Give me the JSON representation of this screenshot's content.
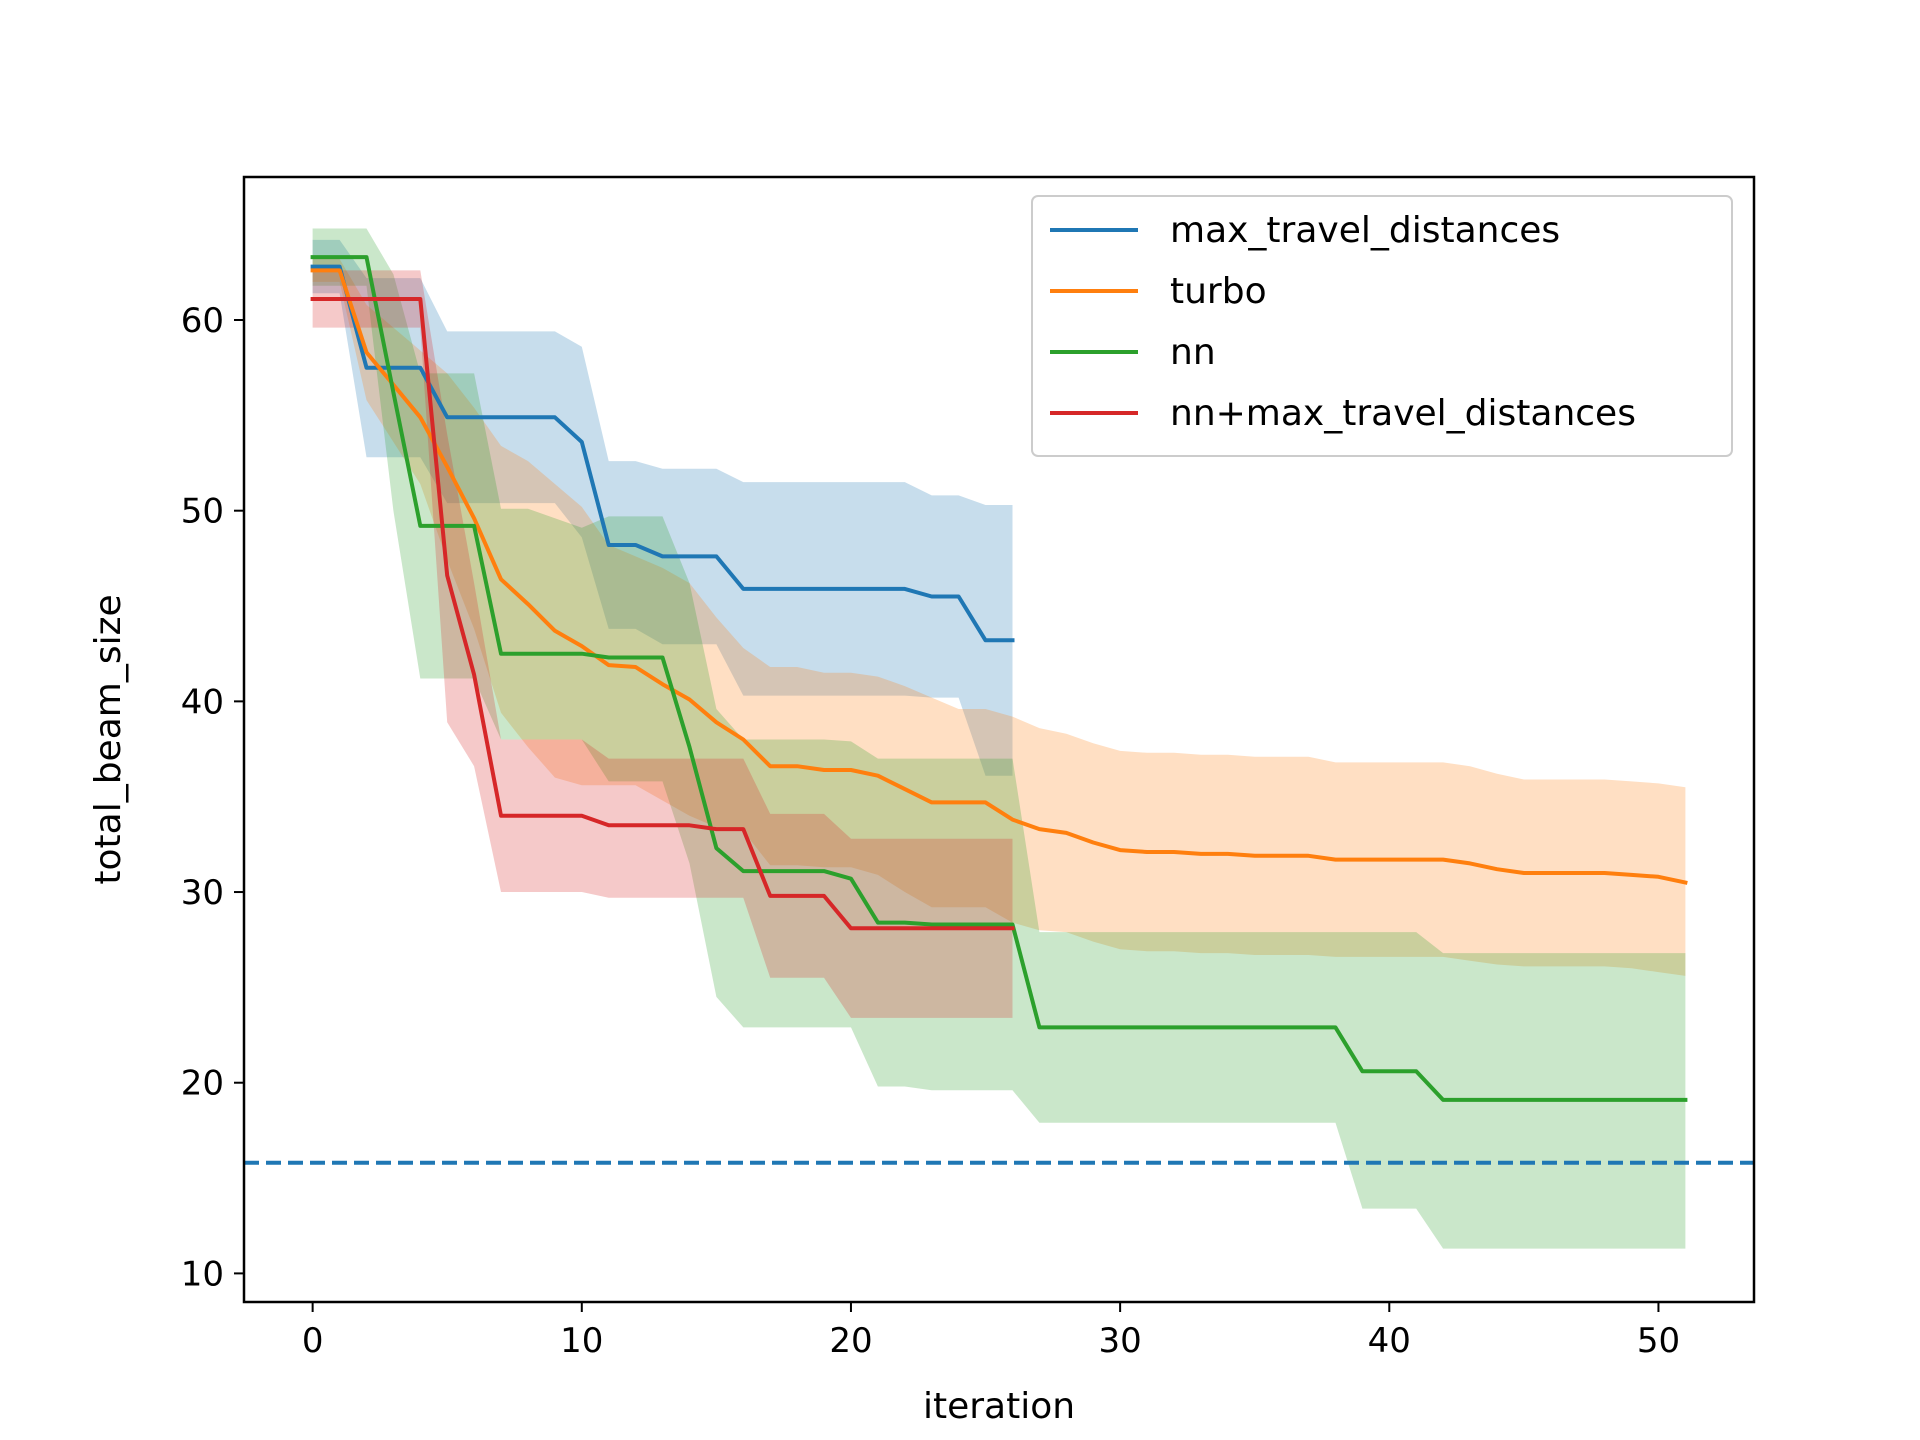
{
  "chart_data": {
    "type": "line",
    "title": "",
    "xlabel": "iteration",
    "ylabel": "total_beam_size",
    "xlim": [
      -2.55,
      53.55
    ],
    "ylim": [
      8.5,
      67.5
    ],
    "xticks": [
      0,
      10,
      20,
      30,
      40,
      50
    ],
    "yticks": [
      10,
      20,
      30,
      40,
      50,
      60
    ],
    "grid": false,
    "legend_position": "upper-right",
    "reference_line": {
      "y": 15.8,
      "style": "dashed",
      "color": "#1f77b4"
    },
    "series": [
      {
        "name": "max_travel_distances",
        "color": "#1f77b4",
        "x": [
          0,
          1,
          2,
          3,
          4,
          5,
          6,
          7,
          8,
          9,
          10,
          11,
          12,
          13,
          14,
          15,
          16,
          17,
          18,
          19,
          20,
          21,
          22,
          23,
          24,
          25,
          26
        ],
        "y": [
          62.8,
          62.8,
          57.5,
          57.5,
          57.5,
          54.9,
          54.9,
          54.9,
          54.9,
          54.9,
          53.6,
          48.2,
          48.2,
          47.6,
          47.6,
          47.6,
          45.9,
          45.9,
          45.9,
          45.9,
          45.9,
          45.9,
          45.9,
          45.5,
          45.5,
          43.2,
          43.2
        ],
        "upper": [
          64.2,
          64.2,
          62.2,
          62.2,
          62.2,
          59.4,
          59.4,
          59.4,
          59.4,
          59.4,
          58.6,
          52.6,
          52.6,
          52.2,
          52.2,
          52.2,
          51.5,
          51.5,
          51.5,
          51.5,
          51.5,
          51.5,
          51.5,
          50.8,
          50.8,
          50.3,
          50.3
        ],
        "lower": [
          61.4,
          61.4,
          52.8,
          52.8,
          52.8,
          50.4,
          50.4,
          50.4,
          50.4,
          50.4,
          48.6,
          43.8,
          43.8,
          43.0,
          43.0,
          43.0,
          40.3,
          40.3,
          40.3,
          40.3,
          40.3,
          40.3,
          40.3,
          40.2,
          40.2,
          36.1,
          36.1
        ]
      },
      {
        "name": "turbo",
        "color": "#ff7f0e",
        "x": [
          0,
          1,
          2,
          3,
          4,
          5,
          6,
          7,
          8,
          9,
          10,
          11,
          12,
          13,
          14,
          15,
          16,
          17,
          18,
          19,
          20,
          21,
          22,
          23,
          24,
          25,
          26,
          27,
          28,
          29,
          30,
          31,
          32,
          33,
          34,
          35,
          36,
          37,
          38,
          39,
          40,
          41,
          42,
          43,
          44,
          45,
          46,
          47,
          48,
          49,
          50,
          51
        ],
        "y": [
          62.6,
          62.6,
          58.3,
          56.6,
          54.9,
          52.3,
          49.6,
          46.4,
          45.1,
          43.7,
          42.9,
          41.9,
          41.8,
          40.9,
          40.1,
          38.9,
          38.0,
          36.6,
          36.6,
          36.4,
          36.4,
          36.1,
          35.4,
          34.7,
          34.7,
          34.7,
          33.8,
          33.3,
          33.1,
          32.6,
          32.2,
          32.1,
          32.1,
          32.0,
          32.0,
          31.9,
          31.9,
          31.9,
          31.7,
          31.7,
          31.7,
          31.7,
          31.7,
          31.5,
          31.2,
          31.0,
          31.0,
          31.0,
          31.0,
          30.9,
          30.8,
          30.5
        ],
        "upper": [
          63.2,
          63.2,
          60.8,
          59.6,
          58.4,
          57.2,
          55.4,
          53.4,
          52.6,
          51.4,
          50.2,
          48.2,
          47.6,
          47.0,
          46.2,
          44.4,
          42.8,
          41.8,
          41.8,
          41.5,
          41.5,
          41.3,
          40.8,
          40.2,
          39.6,
          39.6,
          39.2,
          38.6,
          38.3,
          37.8,
          37.4,
          37.3,
          37.3,
          37.2,
          37.2,
          37.1,
          37.1,
          37.1,
          36.8,
          36.8,
          36.8,
          36.8,
          36.8,
          36.6,
          36.2,
          35.9,
          35.9,
          35.9,
          35.9,
          35.8,
          35.7,
          35.5
        ],
        "lower": [
          62.0,
          62.0,
          55.8,
          53.6,
          51.4,
          47.4,
          43.8,
          39.4,
          37.6,
          36.0,
          35.6,
          35.6,
          35.6,
          34.8,
          34.0,
          33.4,
          33.2,
          31.4,
          31.4,
          31.3,
          31.3,
          30.9,
          30.0,
          29.2,
          29.2,
          29.2,
          28.4,
          28.0,
          27.9,
          27.4,
          27.0,
          26.9,
          26.9,
          26.8,
          26.8,
          26.7,
          26.7,
          26.7,
          26.6,
          26.6,
          26.6,
          26.6,
          26.6,
          26.4,
          26.2,
          26.1,
          26.1,
          26.1,
          26.1,
          26.0,
          25.8,
          25.6
        ]
      },
      {
        "name": "nn",
        "color": "#2ca02c",
        "x": [
          0,
          1,
          2,
          3,
          4,
          5,
          6,
          7,
          8,
          9,
          10,
          11,
          12,
          13,
          14,
          15,
          16,
          17,
          18,
          19,
          20,
          21,
          22,
          23,
          24,
          25,
          26,
          27,
          28,
          29,
          30,
          31,
          32,
          33,
          34,
          35,
          36,
          37,
          38,
          39,
          40,
          41,
          42,
          43,
          44,
          45,
          46,
          47,
          48,
          49,
          50,
          51
        ],
        "y": [
          63.3,
          63.3,
          63.3,
          56.2,
          49.2,
          49.2,
          49.2,
          42.5,
          42.5,
          42.5,
          42.5,
          42.3,
          42.3,
          42.3,
          37.6,
          32.3,
          31.1,
          31.1,
          31.1,
          31.1,
          30.7,
          28.4,
          28.4,
          28.3,
          28.3,
          28.3,
          28.3,
          22.9,
          22.9,
          22.9,
          22.9,
          22.9,
          22.9,
          22.9,
          22.9,
          22.9,
          22.9,
          22.9,
          22.9,
          20.6,
          20.6,
          20.6,
          19.1,
          19.1,
          19.1,
          19.1,
          19.1,
          19.1,
          19.1,
          19.1,
          19.1,
          19.1
        ],
        "upper": [
          64.8,
          64.8,
          64.8,
          62.4,
          57.2,
          57.2,
          57.2,
          50.1,
          50.1,
          49.6,
          49.1,
          49.7,
          49.7,
          49.7,
          46.2,
          39.6,
          38.0,
          38.0,
          38.0,
          38.0,
          37.9,
          37.0,
          37.0,
          37.0,
          37.0,
          37.0,
          37.0,
          27.9,
          27.9,
          27.9,
          27.9,
          27.9,
          27.9,
          27.9,
          27.9,
          27.9,
          27.9,
          27.9,
          27.9,
          27.9,
          27.9,
          27.9,
          26.8,
          26.8,
          26.8,
          26.8,
          26.8,
          26.8,
          26.8,
          26.8,
          26.8,
          26.8
        ],
        "lower": [
          61.8,
          61.8,
          61.8,
          50.0,
          41.2,
          41.2,
          41.2,
          38.0,
          38.0,
          38.0,
          38.0,
          35.8,
          35.8,
          35.8,
          31.5,
          24.5,
          22.9,
          22.9,
          22.9,
          22.9,
          22.9,
          19.8,
          19.8,
          19.6,
          19.6,
          19.6,
          19.6,
          17.9,
          17.9,
          17.9,
          17.9,
          17.9,
          17.9,
          17.9,
          17.9,
          17.9,
          17.9,
          17.9,
          17.9,
          13.4,
          13.4,
          13.4,
          11.3,
          11.3,
          11.3,
          11.3,
          11.3,
          11.3,
          11.3,
          11.3,
          11.3,
          11.3
        ]
      },
      {
        "name": "nn+max_travel_distances",
        "color": "#d62728",
        "x": [
          0,
          1,
          2,
          3,
          4,
          5,
          6,
          7,
          8,
          9,
          10,
          11,
          12,
          13,
          14,
          15,
          16,
          17,
          18,
          19,
          20,
          21,
          22,
          23,
          24,
          25,
          26
        ],
        "y": [
          61.1,
          61.1,
          61.1,
          61.1,
          61.1,
          46.6,
          41.4,
          34.0,
          34.0,
          34.0,
          34.0,
          33.5,
          33.5,
          33.5,
          33.5,
          33.3,
          33.3,
          29.8,
          29.8,
          29.8,
          28.1,
          28.1,
          28.1,
          28.1,
          28.1,
          28.1,
          28.1
        ],
        "upper": [
          62.6,
          62.6,
          62.6,
          62.6,
          62.6,
          54.0,
          46.2,
          38.0,
          38.0,
          38.0,
          38.0,
          37.0,
          37.0,
          37.0,
          37.0,
          37.0,
          37.0,
          34.1,
          34.1,
          34.1,
          32.8,
          32.8,
          32.8,
          32.8,
          32.8,
          32.8,
          32.8
        ],
        "lower": [
          59.6,
          59.6,
          59.6,
          59.6,
          59.6,
          38.9,
          36.6,
          30.0,
          30.0,
          30.0,
          30.0,
          29.7,
          29.7,
          29.7,
          29.7,
          29.7,
          29.7,
          25.5,
          25.5,
          25.5,
          23.4,
          23.4,
          23.4,
          23.4,
          23.4,
          23.4,
          23.4
        ]
      }
    ]
  }
}
